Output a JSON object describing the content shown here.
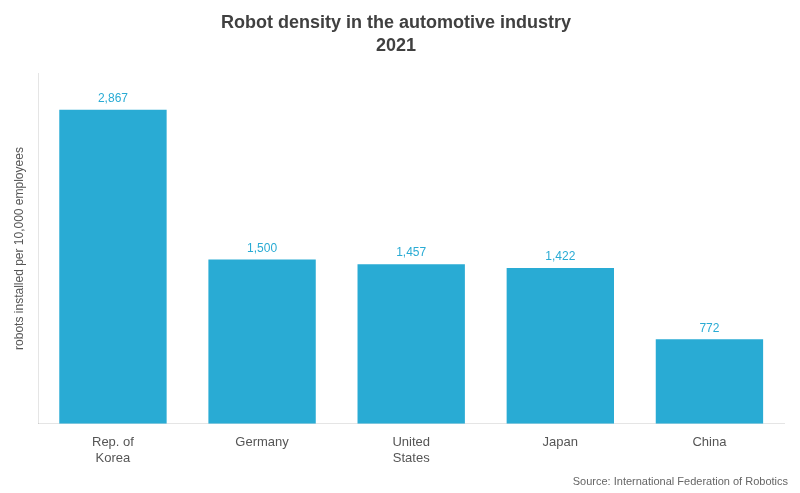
{
  "chart_data": {
    "type": "bar",
    "title": "Robot density in the automotive industry",
    "subtitle": "2021",
    "categories": [
      "Rep. of\nKorea",
      "Germany",
      "United\nStates",
      "Japan",
      "China"
    ],
    "values": [
      2867,
      1500,
      1457,
      1422,
      772
    ],
    "value_labels": [
      "2,867",
      "1,500",
      "1,457",
      "1,422",
      "772"
    ],
    "color": "#29ABD4",
    "ylabel": "robots installed per 10,000 employees",
    "ylim": [
      0,
      3200
    ],
    "grid": false,
    "data_labels": true,
    "tick_labels": "x",
    "annotations": [
      "Source: International Federation of Robotics"
    ]
  }
}
